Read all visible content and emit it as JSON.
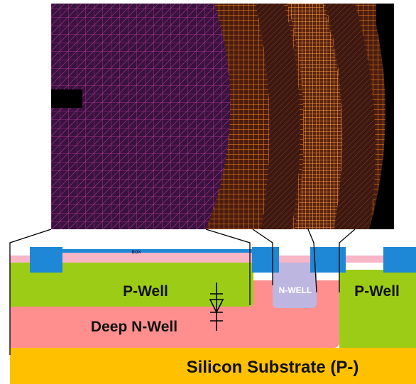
{
  "labels": {
    "box": "BOX",
    "p_well_left": "P-Well",
    "n_well": "N-WELL",
    "p_well_right": "P-Well",
    "deep_n_well": "Deep N-Well",
    "substrate": "Silicon Substrate (P-)"
  },
  "colors": {
    "substrate": "#ffc000",
    "deep_n_well": "#ff8f8f",
    "p_well": "#9dcc16",
    "n_well": "#bcb6e0",
    "sti": "#1e88d6",
    "box_layer": "#f7b5c6",
    "layout_bg": "#000000",
    "layout_purple": "#3a1240",
    "layout_orange": "#ff8a1c"
  },
  "icons": {
    "diode": "diode-symbol-icon"
  }
}
